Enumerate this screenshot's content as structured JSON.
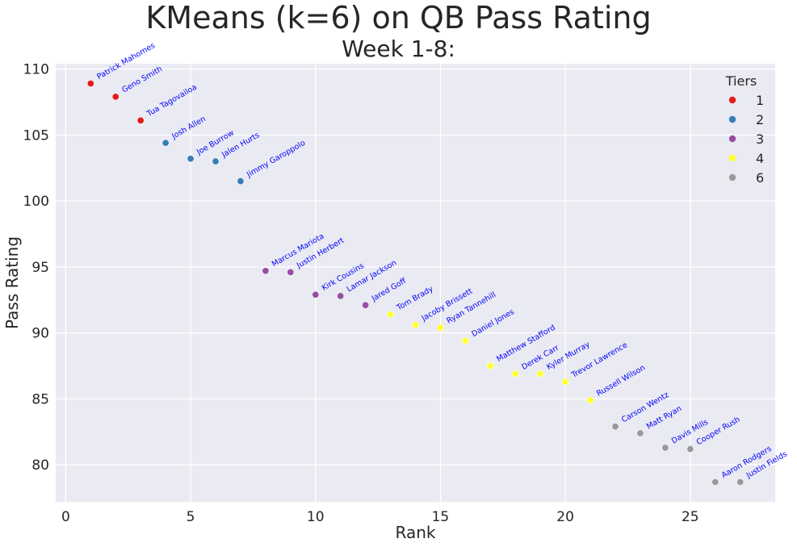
{
  "chart_data": {
    "type": "scatter",
    "suptitle": "KMeans (k=6) on QB Pass Rating",
    "title": "Week 1-8:",
    "xlabel": "Rank",
    "ylabel": "Pass Rating",
    "xlim": [
      -0.4,
      28.4
    ],
    "ylim": [
      77.2,
      110.4
    ],
    "xticks": [
      0,
      5,
      10,
      15,
      20,
      25
    ],
    "yticks": [
      80,
      85,
      90,
      95,
      100,
      105,
      110
    ],
    "grid": true,
    "background": "#eaeaf2",
    "label_color": "#0000ff",
    "legend": {
      "title": "Tiers",
      "placement": "top-right",
      "entries": [
        {
          "label": "1",
          "color": "#e41a1c"
        },
        {
          "label": "2",
          "color": "#377eb8"
        },
        {
          "label": "3",
          "color": "#984ea3"
        },
        {
          "label": "4",
          "color": "#ffff33"
        },
        {
          "label": "6",
          "color": "#999999"
        }
      ]
    },
    "points": [
      {
        "name": "Patrick Mahomes",
        "x": 1,
        "y": 108.9,
        "tier": "1"
      },
      {
        "name": "Geno Smith",
        "x": 2,
        "y": 107.9,
        "tier": "1"
      },
      {
        "name": "Tua Tagovailoa",
        "x": 3,
        "y": 106.1,
        "tier": "1"
      },
      {
        "name": "Josh Allen",
        "x": 4,
        "y": 104.4,
        "tier": "2"
      },
      {
        "name": "Joe Burrow",
        "x": 5,
        "y": 103.2,
        "tier": "2"
      },
      {
        "name": "Jalen Hurts",
        "x": 6,
        "y": 103.0,
        "tier": "2"
      },
      {
        "name": "Jimmy Garoppolo",
        "x": 7,
        "y": 101.5,
        "tier": "2"
      },
      {
        "name": "Marcus Mariota",
        "x": 8,
        "y": 94.7,
        "tier": "3"
      },
      {
        "name": "Justin Herbert",
        "x": 9,
        "y": 94.6,
        "tier": "3"
      },
      {
        "name": "Kirk Cousins",
        "x": 10,
        "y": 92.9,
        "tier": "3"
      },
      {
        "name": "Lamar Jackson",
        "x": 11,
        "y": 92.8,
        "tier": "3"
      },
      {
        "name": "Jared Goff",
        "x": 12,
        "y": 92.1,
        "tier": "3"
      },
      {
        "name": "Tom Brady",
        "x": 13,
        "y": 91.4,
        "tier": "4"
      },
      {
        "name": "Jacoby Brissett",
        "x": 14,
        "y": 90.6,
        "tier": "4"
      },
      {
        "name": "Ryan Tannehill",
        "x": 15,
        "y": 90.4,
        "tier": "4"
      },
      {
        "name": "Daniel Jones",
        "x": 16,
        "y": 89.4,
        "tier": "4"
      },
      {
        "name": "Matthew Stafford",
        "x": 17,
        "y": 87.5,
        "tier": "4"
      },
      {
        "name": "Derek Carr",
        "x": 18,
        "y": 86.9,
        "tier": "4"
      },
      {
        "name": "Kyler Murray",
        "x": 19,
        "y": 86.9,
        "tier": "4"
      },
      {
        "name": "Trevor Lawrence",
        "x": 20,
        "y": 86.3,
        "tier": "4"
      },
      {
        "name": "Russell Wilson",
        "x": 21,
        "y": 84.9,
        "tier": "4"
      },
      {
        "name": "Carson Wentz",
        "x": 22,
        "y": 82.9,
        "tier": "6"
      },
      {
        "name": "Matt Ryan",
        "x": 23,
        "y": 82.4,
        "tier": "6"
      },
      {
        "name": "Davis Mills",
        "x": 24,
        "y": 81.3,
        "tier": "6"
      },
      {
        "name": "Cooper Rush",
        "x": 25,
        "y": 81.2,
        "tier": "6"
      },
      {
        "name": "Aaron Rodgers",
        "x": 26,
        "y": 78.7,
        "tier": "6"
      },
      {
        "name": "Justin Fields",
        "x": 27,
        "y": 78.7,
        "tier": "6"
      }
    ]
  }
}
